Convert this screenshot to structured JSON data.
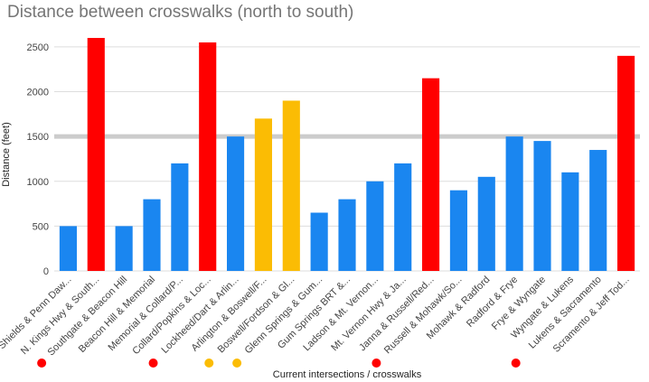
{
  "chart_data": {
    "type": "bar",
    "title": "Distance between crosswalks (north to south)",
    "xlabel": "Current intersections / crosswalks",
    "ylabel": "Distance (feet)",
    "ylim": [
      0,
      2600
    ],
    "yticks": [
      0,
      500,
      1000,
      1500,
      2000,
      2500
    ],
    "grid": true,
    "reference_line": 1500,
    "colors": {
      "blue": "#1a86f0",
      "red": "#ff0000",
      "yellow": "#fbbc04",
      "reference": "#cccccc"
    },
    "categories": [
      "Shields & Penn Daw...",
      "N. Kings Hwy & South...",
      "Southgate & Beacon Hill",
      "Beacon Hill & Memorial",
      "Memorial & Collard/P...",
      "Collard/Popkins & Loc...",
      "Lockheed/Dart & Arlin...",
      "Arlington & Boswell/F...",
      "Boswell/Fordson & Gl...",
      "Glenn Springs & Gum...",
      "Gum Springs BRT &...",
      "Ladson & Mt. Vernon...",
      "Mt. Vernon Hwy & Ja...",
      "Janna & Russell/Red...",
      "Russell & Mohawk/So...",
      "Mohawk & Radford",
      "Radford & Frye",
      "Frye & Wyngate",
      "Wyngate & Lukens",
      "Lukens & Sacramento",
      "Scramento & Jeff Tod..."
    ],
    "values": [
      500,
      2600,
      500,
      800,
      1200,
      2550,
      1500,
      1700,
      1900,
      650,
      800,
      1000,
      1200,
      2150,
      900,
      1050,
      1500,
      1450,
      1100,
      1350,
      2400
    ],
    "bar_colors": [
      "blue",
      "red",
      "blue",
      "blue",
      "blue",
      "red",
      "blue",
      "yellow",
      "yellow",
      "blue",
      "blue",
      "blue",
      "blue",
      "red",
      "blue",
      "blue",
      "blue",
      "blue",
      "blue",
      "blue",
      "red"
    ],
    "dot_markers": [
      "red",
      "",
      "",
      "",
      "red",
      "",
      "yellow",
      "yellow",
      "",
      "",
      "",
      "",
      "red",
      "",
      "",
      "",
      "",
      "red",
      "",
      "",
      ""
    ]
  }
}
